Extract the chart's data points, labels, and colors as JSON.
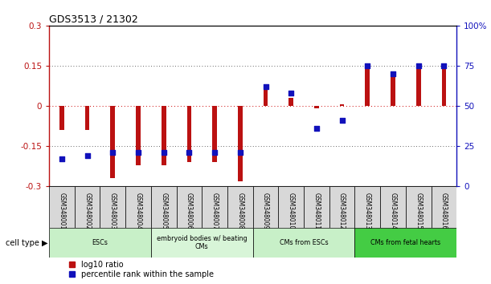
{
  "title": "GDS3513 / 21302",
  "samples": [
    "GSM348001",
    "GSM348002",
    "GSM348003",
    "GSM348004",
    "GSM348005",
    "GSM348006",
    "GSM348007",
    "GSM348008",
    "GSM348009",
    "GSM348010",
    "GSM348011",
    "GSM348012",
    "GSM348013",
    "GSM348014",
    "GSM348015",
    "GSM348016"
  ],
  "log10_ratio": [
    -0.09,
    -0.09,
    -0.27,
    -0.22,
    -0.22,
    -0.21,
    -0.21,
    -0.28,
    0.06,
    0.03,
    -0.01,
    0.005,
    0.15,
    0.13,
    0.15,
    0.15
  ],
  "percentile_rank": [
    17,
    19,
    21,
    21,
    21,
    21,
    21,
    21,
    62,
    58,
    36,
    41,
    75,
    70,
    75,
    75
  ],
  "cell_types": [
    {
      "label": "ESCs",
      "start": 0,
      "end": 3,
      "color": "#c8f0c8"
    },
    {
      "label": "embryoid bodies w/ beating\nCMs",
      "start": 4,
      "end": 7,
      "color": "#d8f5d8"
    },
    {
      "label": "CMs from ESCs",
      "start": 8,
      "end": 11,
      "color": "#c8f0c8"
    },
    {
      "label": "CMs from fetal hearts",
      "start": 12,
      "end": 15,
      "color": "#44cc44"
    }
  ],
  "ylim_left": [
    -0.3,
    0.3
  ],
  "ylim_right": [
    0,
    100
  ],
  "yticks_left": [
    -0.3,
    -0.15,
    0,
    0.15,
    0.3
  ],
  "ytick_labels_left": [
    "-0.3",
    "-0.15",
    "0",
    "0.15",
    "0.3"
  ],
  "yticks_right": [
    0,
    25,
    50,
    75,
    100
  ],
  "ytick_labels_right": [
    "0",
    "25",
    "50",
    "75",
    "100%"
  ],
  "bar_color_red": "#bb1111",
  "bar_color_blue": "#1111bb",
  "bar_width": 0.18,
  "dot_size": 18,
  "hline_color_red": "#cc0000",
  "hline_color_dotted": "#333333",
  "legend_labels": [
    "log10 ratio",
    "percentile rank within the sample"
  ],
  "cell_type_label": "cell type",
  "cell_type_colors": [
    "#c8f0c8",
    "#d8f5d8",
    "#c8f0c8",
    "#44cc44"
  ]
}
